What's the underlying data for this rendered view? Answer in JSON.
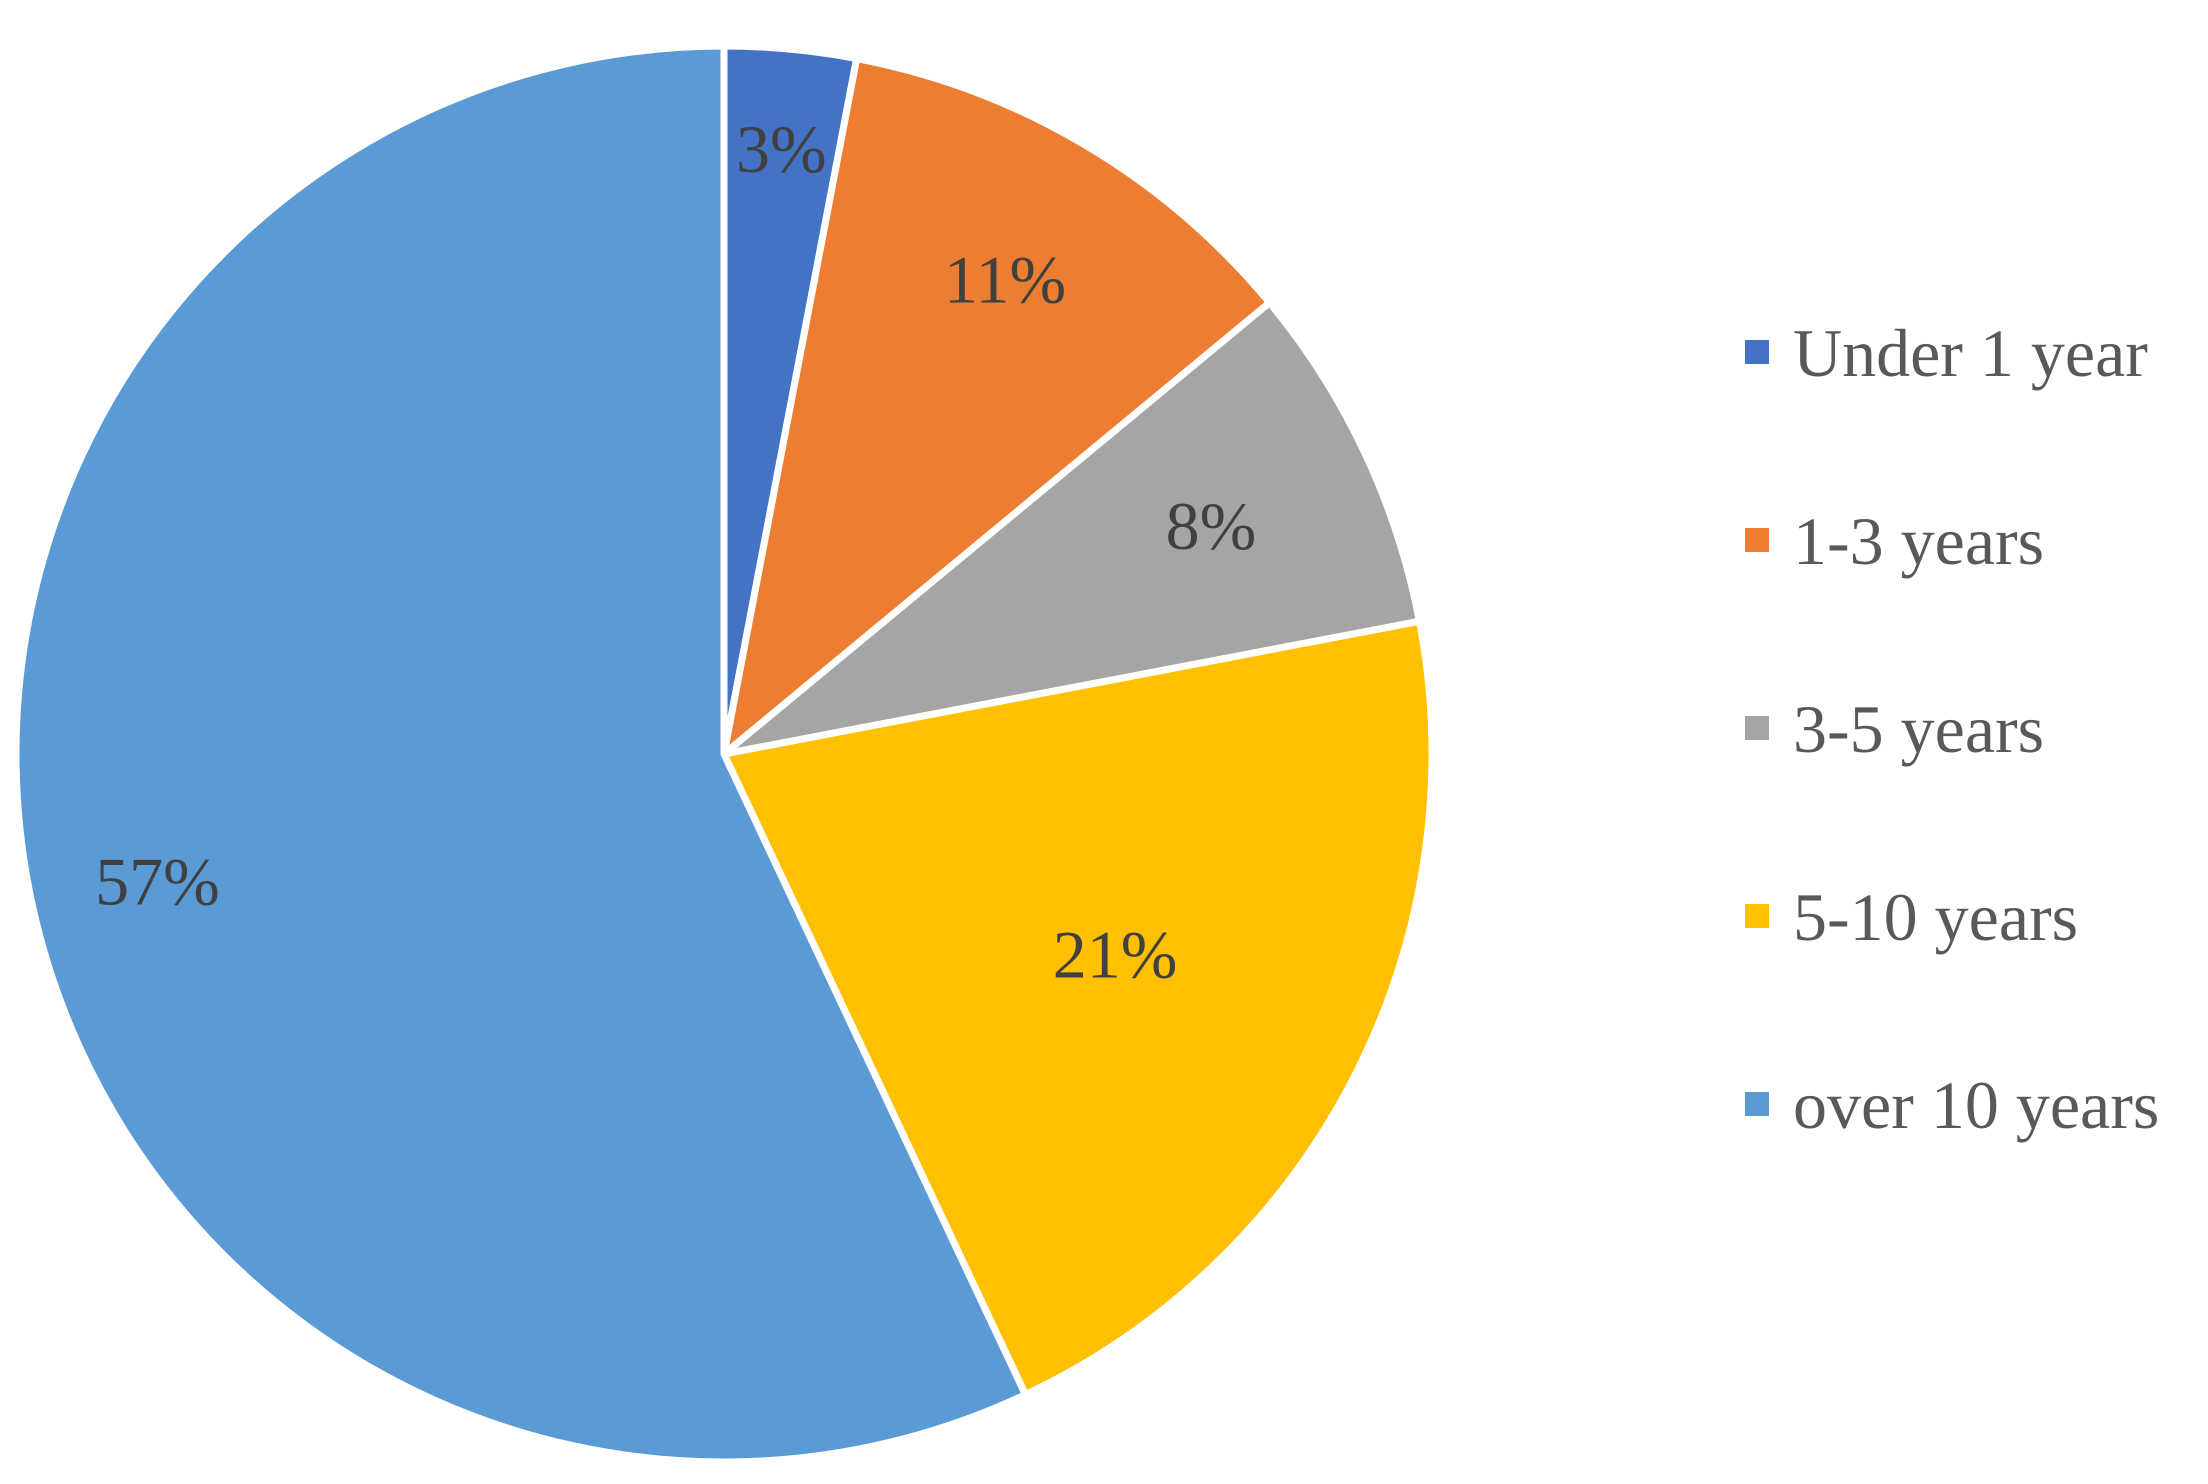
{
  "chart_data": {
    "type": "pie",
    "title": "",
    "legend_position": "right",
    "start_angle_deg": 0,
    "direction": "clockwise",
    "slices": [
      {
        "category": "Under 1 year",
        "value": 3,
        "label": "3%",
        "color": "#4472C4"
      },
      {
        "category": "1-3 years",
        "value": 11,
        "label": "11%",
        "color": "#ED7D31"
      },
      {
        "category": "3-5 years",
        "value": 8,
        "label": "8%",
        "color": "#A5A5A5"
      },
      {
        "category": "5-10 years",
        "value": 21,
        "label": "21%",
        "color": "#FFC000"
      },
      {
        "category": "over 10 years",
        "value": 57,
        "label": "57%",
        "color": "#5B9BD5"
      }
    ]
  }
}
